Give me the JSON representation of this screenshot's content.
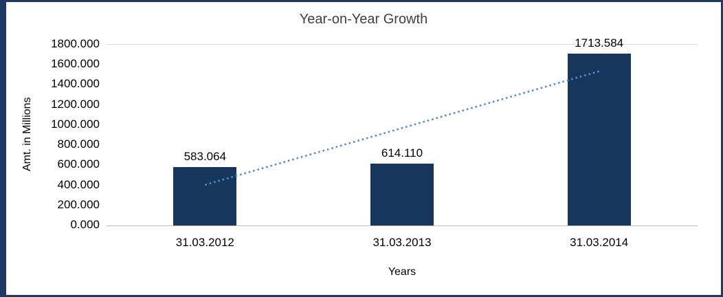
{
  "chart_data": {
    "type": "bar",
    "title": "Year-on-Year Growth",
    "xlabel": "Years",
    "ylabel": "Amt. in Millions",
    "categories": [
      "31.03.2012",
      "31.03.2013",
      "31.03.2014"
    ],
    "values": [
      583.064,
      614.11,
      1713.584
    ],
    "data_labels": [
      "583.064",
      "614.110",
      "1713.584"
    ],
    "ylim": [
      0,
      1800
    ],
    "ytick_labels": [
      "0.000",
      "200.000",
      "400.000",
      "600.000",
      "800.000",
      "1000.000",
      "1200.000",
      "1400.000",
      "1600.000",
      "1800.000"
    ],
    "grid": "top-gridline-only",
    "legend_position": "none",
    "bar_color": "#16365C",
    "frame_border_color": "#1F3864",
    "axis_line_color": "#BFBFBF",
    "trendline": {
      "type": "linear",
      "style": "dotted",
      "color": "#538DD5",
      "value_start": 405,
      "value_end": 1535
    }
  }
}
